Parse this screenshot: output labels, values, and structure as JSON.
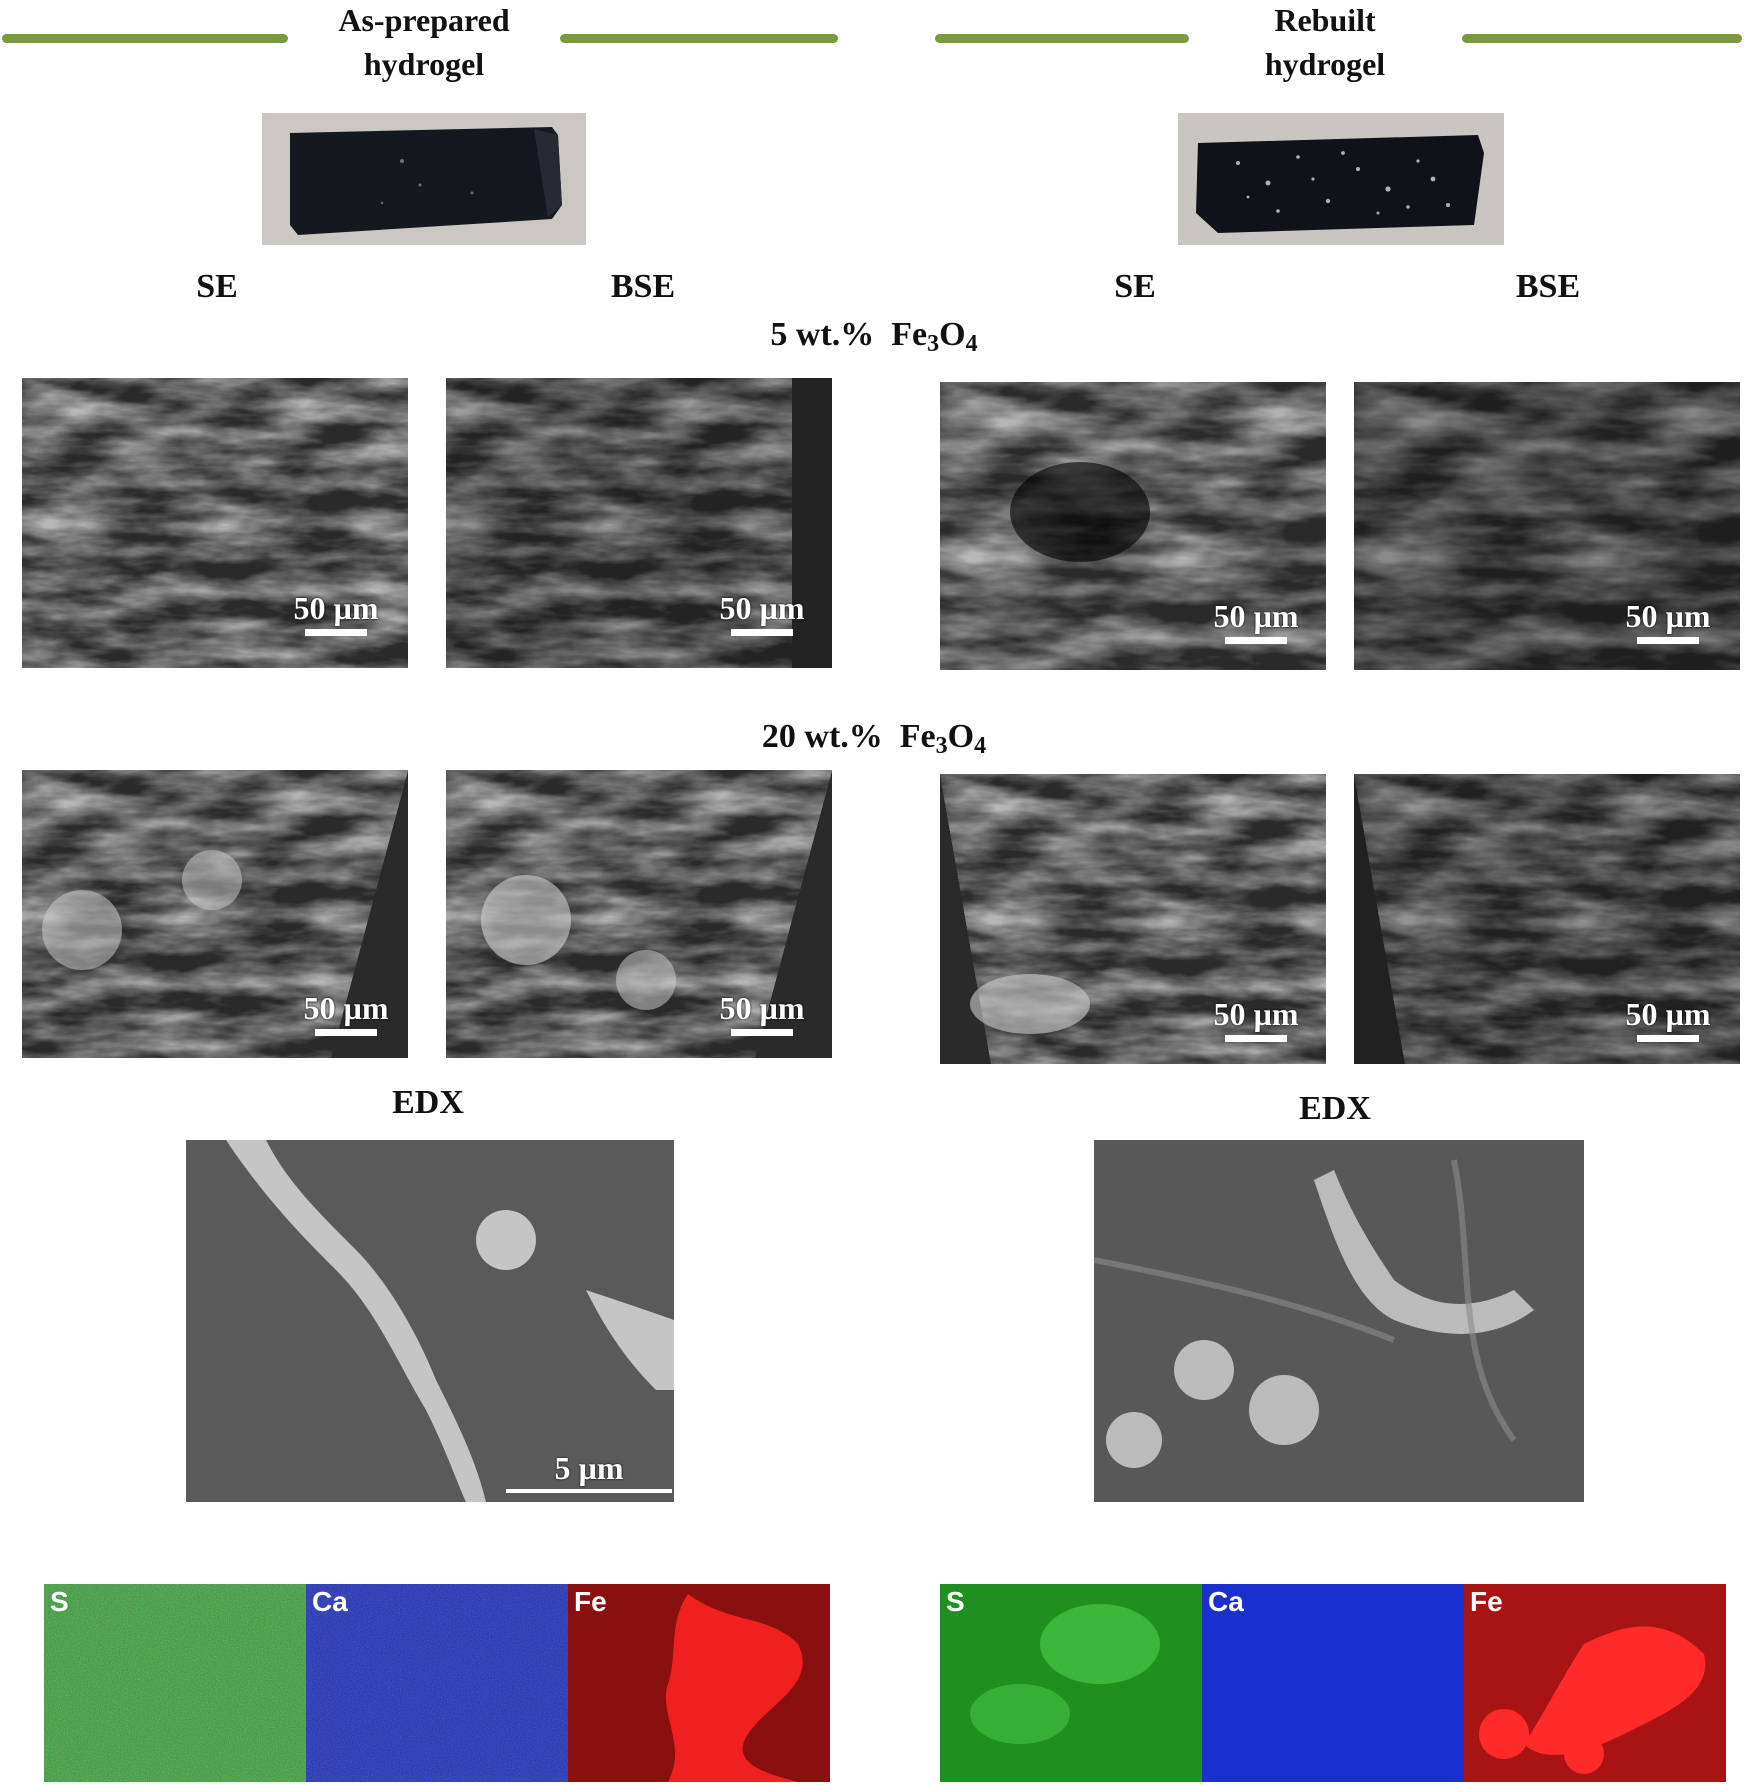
{
  "left_panel": {
    "title": "As-prepared hydrogel",
    "title_line1": "As-prepared",
    "title_line2": "hydrogel",
    "col_se": "SE",
    "col_bse": "BSE",
    "row1_scale": "50 µm",
    "row2_scale": "50 µm",
    "edx_label": "EDX",
    "edx_scale": "5 µm",
    "maps": [
      "S",
      "Ca",
      "Fe"
    ]
  },
  "right_panel": {
    "title_line1": "Rebuilt",
    "title_line2": "hydrogel",
    "col_se": "SE",
    "col_bse": "BSE",
    "row1_scale": "50 µm",
    "row2_scale": "50 µm",
    "edx_label": "EDX",
    "maps": [
      "S",
      "Ca",
      "Fe"
    ]
  },
  "rows": {
    "row1_prefix": "5 wt.%",
    "row1_formula_a": "Fe",
    "row1_sub_a": "3",
    "row1_formula_b": "O",
    "row1_sub_b": "4",
    "row2_prefix": "20 wt.%",
    "row2_formula_a": "Fe",
    "row2_sub_a": "3",
    "row2_formula_b": "O",
    "row2_sub_b": "4"
  },
  "colors": {
    "rule": "#7a9a3c",
    "map_s": "#2f9a2c",
    "map_ca": "#1f2fb8",
    "map_fe": "#b01515"
  }
}
